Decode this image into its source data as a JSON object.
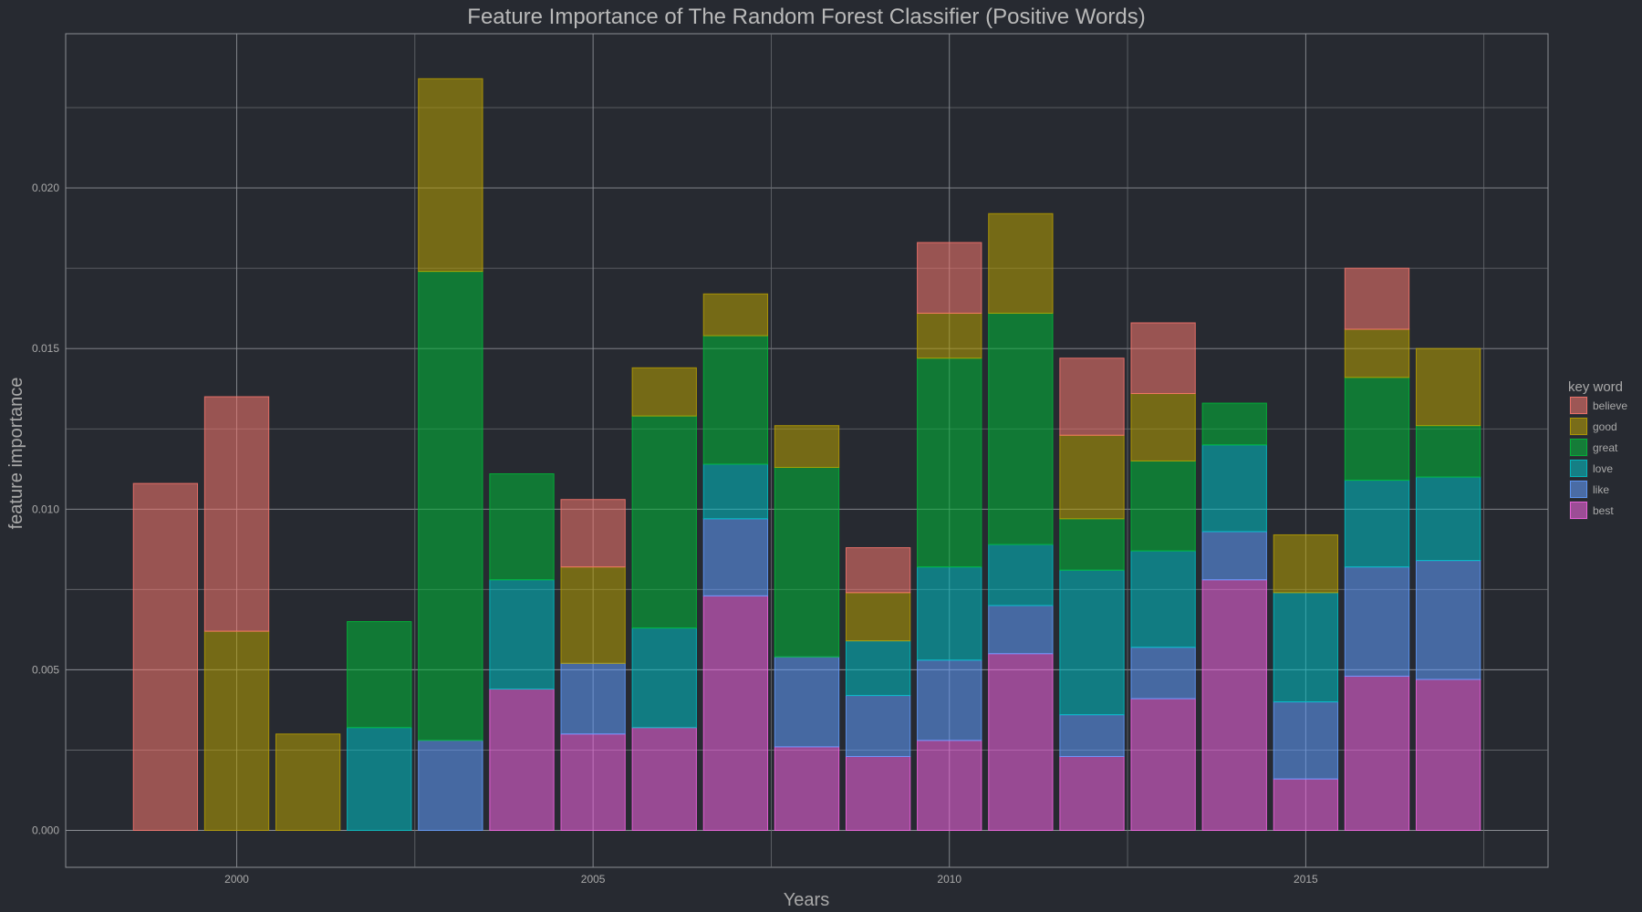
{
  "chart_data": {
    "type": "bar",
    "stacked": true,
    "title": "Feature Importance of The Random Forest Classifier (Positive Words)",
    "xlabel": "Years",
    "ylabel": "feature importance",
    "xlim": [
      1997.6,
      2018.4
    ],
    "ylim": [
      -0.00115,
      0.0248
    ],
    "x_ticks": [
      2000,
      2005,
      2010,
      2015
    ],
    "y_ticks": [
      0.0,
      0.005,
      0.01,
      0.015,
      0.02
    ],
    "y_tick_labels": [
      "0.000",
      "0.005",
      "0.010",
      "0.015",
      "0.020"
    ],
    "grid": true,
    "x": [
      1999,
      2000,
      2001,
      2002,
      2003,
      2004,
      2005,
      2006,
      2007,
      2008,
      2009,
      2010,
      2011,
      2012,
      2013,
      2014,
      2015,
      2016,
      2017
    ],
    "stack_order": [
      "best",
      "like",
      "love",
      "great",
      "good",
      "believe"
    ],
    "series": [
      {
        "name": "believe",
        "color": "#f8766d",
        "values": [
          0.0108,
          0.0073,
          0,
          0,
          0,
          0,
          0.0021,
          0,
          0,
          0,
          0.0014,
          0.0022,
          0,
          0.0024,
          0.0022,
          0,
          0,
          0.0019,
          0
        ]
      },
      {
        "name": "good",
        "color": "#b79f00",
        "values": [
          0,
          0.0062,
          0.003,
          0,
          0.006,
          0,
          0.003,
          0.0015,
          0.0013,
          0.0013,
          0.0015,
          0.0014,
          0.0031,
          0.0026,
          0.0021,
          0,
          0.0018,
          0.0015,
          0.0024
        ]
      },
      {
        "name": "great",
        "color": "#00ba38",
        "values": [
          0,
          0,
          0,
          0.0033,
          0.0146,
          0.0033,
          0,
          0.0066,
          0.004,
          0.0059,
          0,
          0.0065,
          0.0072,
          0.0016,
          0.0028,
          0.0013,
          0,
          0.0032,
          0.0016
        ]
      },
      {
        "name": "love",
        "color": "#00bfc4",
        "values": [
          0,
          0,
          0,
          0.0032,
          0,
          0.0034,
          0,
          0.0031,
          0.0017,
          0,
          0.0017,
          0.0029,
          0.0019,
          0.0045,
          0.003,
          0.0027,
          0.0034,
          0.0027,
          0.0026
        ]
      },
      {
        "name": "like",
        "color": "#619cff",
        "values": [
          0,
          0,
          0,
          0,
          0.0028,
          0,
          0.0022,
          0,
          0.0024,
          0.0028,
          0.0019,
          0.0025,
          0.0015,
          0.0013,
          0.0016,
          0.0015,
          0.0024,
          0.0034,
          0.0037
        ]
      },
      {
        "name": "best",
        "color": "#f564e3",
        "values": [
          0,
          0,
          0,
          0,
          0,
          0.0044,
          0.003,
          0.0032,
          0.0073,
          0.0026,
          0.0023,
          0.0028,
          0.0055,
          0.0023,
          0.0041,
          0.0078,
          0.0016,
          0.0048,
          0.0047
        ]
      }
    ],
    "legend": {
      "title": "key word",
      "position": "right",
      "entries": [
        "believe",
        "good",
        "great",
        "love",
        "like",
        "best"
      ]
    },
    "panel_color": "#272a31"
  }
}
